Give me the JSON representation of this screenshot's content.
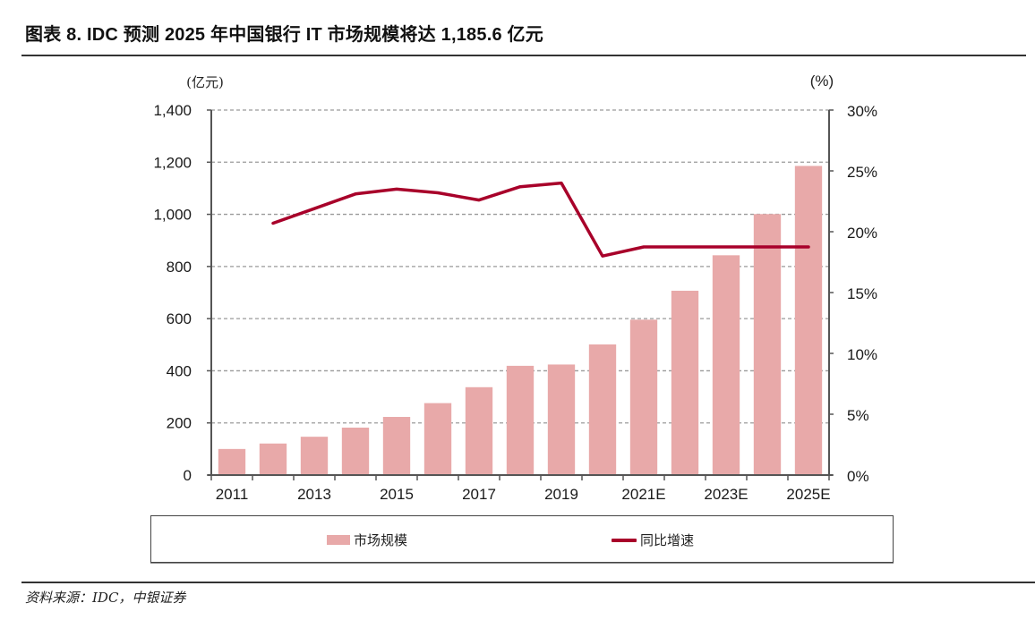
{
  "title": "图表 8. IDC 预测 2025 年中国银行 IT 市场规模将达 1,185.6 亿元",
  "source": "资料来源：IDC，中银证券",
  "colors": {
    "bar": "#e8a9a9",
    "line": "#a8002a",
    "grid": "#9a9a9a",
    "axis": "#555555"
  },
  "chart_data": {
    "type": "bar+line",
    "title": "IDC 预测 2025 年中国银行 IT 市场规模将达 1,185.6 亿元",
    "categories": [
      "2011",
      "2012",
      "2013",
      "2014",
      "2015",
      "2016",
      "2017",
      "2018",
      "2019",
      "2020",
      "2021E",
      "2022E",
      "2023E",
      "2024E",
      "2025E"
    ],
    "x_tick_labels": [
      "2011",
      "2013",
      "2015",
      "2017",
      "2019",
      "2021E",
      "2023E",
      "2025E"
    ],
    "left_axis": {
      "unit_label": "(亿元)",
      "ylim": [
        0,
        1400
      ],
      "ticks": [
        0,
        200,
        400,
        600,
        800,
        1000,
        1200,
        1400
      ],
      "tick_labels": [
        "0",
        "200",
        "400",
        "600",
        "800",
        "1,000",
        "1,200",
        "1,400"
      ]
    },
    "right_axis": {
      "unit_label": "(%)",
      "ylim": [
        0,
        30
      ],
      "ticks": [
        0,
        5,
        10,
        15,
        20,
        25,
        30
      ],
      "tick_labels": [
        "0%",
        "5%",
        "10%",
        "15%",
        "20%",
        "25%",
        "30%"
      ]
    },
    "grid": true,
    "legend_position": "bottom",
    "series": [
      {
        "name": "市场规模",
        "type": "bar",
        "axis": "left",
        "values": [
          100,
          121,
          147,
          182,
          223,
          276,
          337,
          419,
          424,
          501,
          596,
          707,
          843,
          1001,
          1185.6
        ]
      },
      {
        "name": "同比增速",
        "type": "line",
        "axis": "right",
        "values": [
          null,
          20.7,
          21.9,
          23.1,
          23.5,
          23.2,
          22.6,
          23.7,
          24.0,
          18.0,
          18.75,
          18.75,
          18.75,
          18.75,
          18.75
        ]
      }
    ]
  }
}
